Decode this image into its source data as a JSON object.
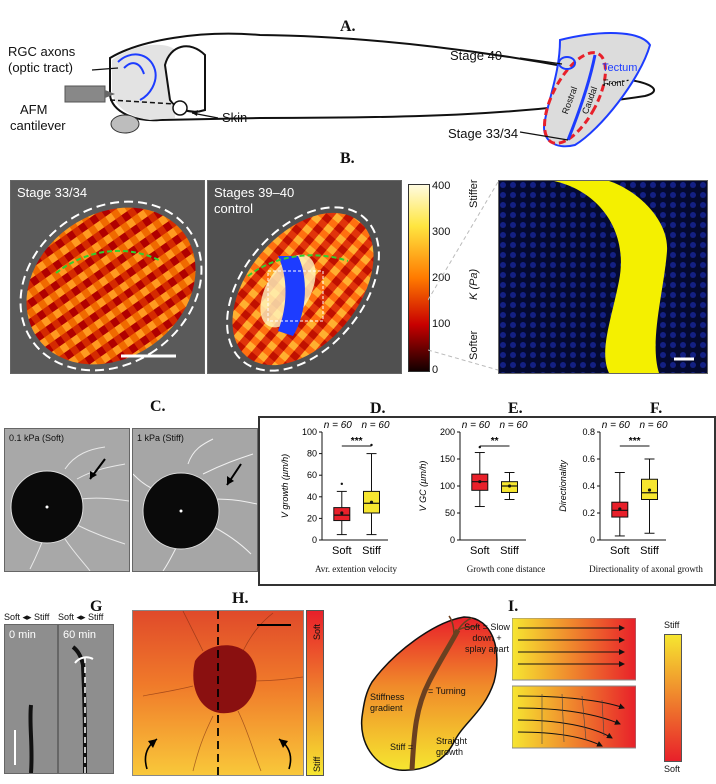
{
  "figure": {
    "panels": {
      "A": "A.",
      "B": "B.",
      "C": "C.",
      "D": "D.",
      "E": "E.",
      "F": "F.",
      "G": "G",
      "H": "H.",
      "I": "I."
    },
    "panel_a": {
      "rgc_axons": "RGC axons",
      "optic_tract": "(optic tract)",
      "afm": "AFM",
      "cantilever": "cantilever",
      "skin": "Skin",
      "stage40": "Stage 40",
      "stage3334": "Stage 33/34",
      "tectum": "Tectum",
      "front": "Front",
      "rostral": "Rostral",
      "caudal": "Caudal"
    },
    "panel_b": {
      "img1_label": "Stage 33/34",
      "img2_label1": "Stages 39–40",
      "img2_label2": "control",
      "colorbar_ticks": [
        "400",
        "300",
        "200",
        "100",
        "0"
      ],
      "stiffer": "Stiffer",
      "softer": "Softer",
      "k_label": "K (Pa)",
      "colors": {
        "hot_low": "#1a0000",
        "hot_mid": "#d62000",
        "hot_high": "#fff8a0",
        "axon_blue": "#1d3cff",
        "confocal_yellow": "#f4f000"
      }
    },
    "panel_c": {
      "soft_label": "0.1 kPa (Soft)",
      "stiff_label": "1 kPa (Stiff)"
    },
    "boxplots": {
      "n_label": "n = 60",
      "sig_D": "***",
      "sig_E": "**",
      "sig_F": "***",
      "soft": "Soft",
      "stiff": "Stiff",
      "caption_D": "Avr. extention velocity",
      "caption_E": "Growth cone distance",
      "caption_F": "Directionality of axonal growth",
      "ylabel_D": "V growth (µm/h)",
      "ylabel_E": "V GC (µm/h)",
      "ylabel_F": "Directionality",
      "colors": {
        "soft": "#e8202a",
        "stiff": "#f6e630"
      }
    },
    "panel_g": {
      "header": "Soft ◂▸ Stiff",
      "t0": "0 min",
      "t60": "60 min"
    },
    "panel_h": {
      "soft": "Soft",
      "stiff": "Stiff"
    },
    "panel_i": {
      "soft_text": "Soft = Slow down + splay apart",
      "turning": "= Turning",
      "gradient": "Stiffness gradient",
      "stiff_eq": "Stiff =",
      "straight": "Straight growth",
      "bar_stiff": "Stiff",
      "bar_soft": "Soft"
    }
  },
  "chart_data": [
    {
      "type": "box",
      "title": "",
      "ylabel": "V_growth (µm/h)",
      "xlabel": "Avr. extention velocity",
      "ylim": [
        0,
        100
      ],
      "yticks": [
        0,
        20,
        40,
        60,
        80,
        100
      ],
      "categories": [
        "Soft",
        "Stiff"
      ],
      "n": [
        60,
        60
      ],
      "significance": "***",
      "series": [
        {
          "name": "Soft",
          "min": 5,
          "q1": 18,
          "median": 23,
          "q3": 30,
          "max": 45,
          "mean": 25,
          "outliers": [
            52
          ]
        },
        {
          "name": "Stiff",
          "min": 5,
          "q1": 25,
          "median": 34,
          "q3": 45,
          "max": 80,
          "mean": 35,
          "outliers": [
            88
          ]
        }
      ]
    },
    {
      "type": "box",
      "title": "",
      "ylabel": "V_GC (µm/h)",
      "xlabel": "Growth cone distance",
      "ylim": [
        0,
        200
      ],
      "yticks": [
        0,
        50,
        100,
        150,
        200
      ],
      "categories": [
        "Soft",
        "Stiff"
      ],
      "n": [
        60,
        60
      ],
      "significance": "**",
      "series": [
        {
          "name": "Soft",
          "min": 62,
          "q1": 92,
          "median": 108,
          "q3": 122,
          "max": 162,
          "mean": 108,
          "outliers": [
            172
          ]
        },
        {
          "name": "Stiff",
          "min": 75,
          "q1": 88,
          "median": 100,
          "q3": 108,
          "max": 125,
          "mean": 100,
          "outliers": []
        }
      ]
    },
    {
      "type": "box",
      "title": "",
      "ylabel": "Directionality",
      "xlabel": "Directionality of axonal growth",
      "ylim": [
        0,
        0.8
      ],
      "yticks": [
        0,
        0.2,
        0.4,
        0.6,
        0.8
      ],
      "categories": [
        "Soft",
        "Stiff"
      ],
      "n": [
        60,
        60
      ],
      "significance": "***",
      "series": [
        {
          "name": "Soft",
          "min": 0.03,
          "q1": 0.17,
          "median": 0.22,
          "q3": 0.28,
          "max": 0.5,
          "mean": 0.23,
          "outliers": []
        },
        {
          "name": "Stiff",
          "min": 0.05,
          "q1": 0.3,
          "median": 0.35,
          "q3": 0.45,
          "max": 0.6,
          "mean": 0.37,
          "outliers": []
        }
      ]
    }
  ]
}
